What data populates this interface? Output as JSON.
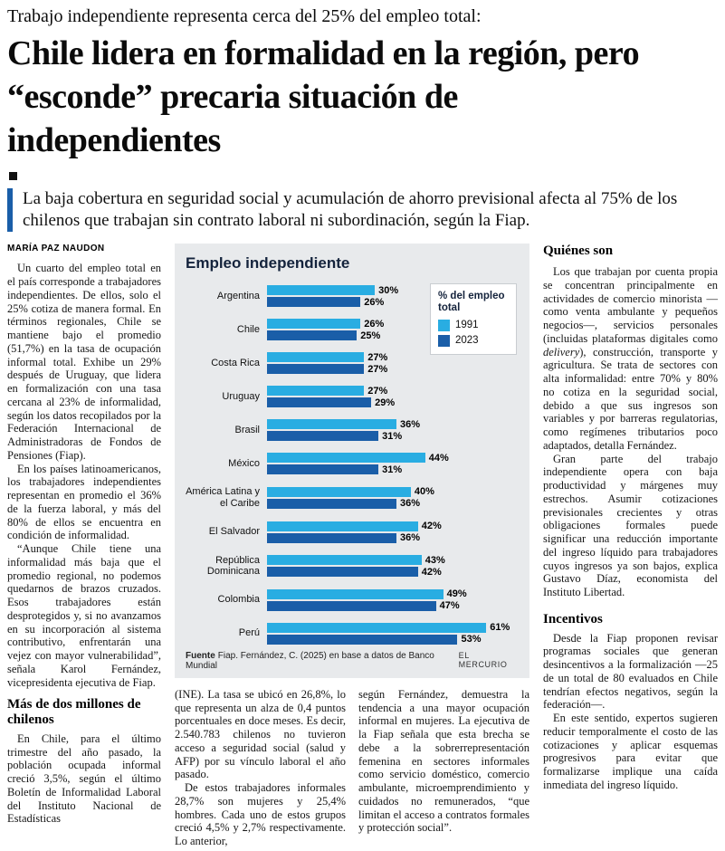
{
  "header": {
    "kicker": "Trabajo independiente representa cerca del 25% del empleo total:",
    "headline": "Chile lidera en formalidad en la región, pero “esconde” precaria situación de independientes",
    "deck": "La baja cobertura en seguridad social y acumulación de ahorro previsional afecta al 75% de los chilenos que trabajan sin contrato laboral ni subordinación, según la Fiap."
  },
  "article": {
    "byline": "MARÍA PAZ NAUDON",
    "left": {
      "paragraphs": [
        "Un cuarto del empleo total en el país corresponde a trabajadores independientes. De ellos, solo el 25% cotiza de manera formal. En términos regionales, Chile se mantiene bajo el promedio (51,7%) en la tasa de ocupación informal total. Exhibe un 29% después de Uruguay, que lidera en formalización con una tasa cercana al 23% de informalidad, según los datos recopilados por la Federación Internacional de Administradoras de Fondos de Pensiones (Fiap).",
        "En los países latinoamericanos, los trabajadores independientes representan en promedio el 36% de la fuerza laboral, y más del 80% de ellos se encuentra en condición de informalidad.",
        "“Aunque Chile tiene una informalidad más baja que el promedio regional, no podemos quedarnos de brazos cruzados. Esos trabajadores están desprotegidos y, si no avanzamos en su incorporación al sistema contributivo, enfrentarán una vejez con mayor vulnerabilidad”, señala Karol Fernández, vicepresidenta ejecutiva de Fiap."
      ],
      "subhead": "Más de dos millones de chilenos",
      "paragraphs_after": [
        "En Chile, para el último trimestre del año pasado, la población ocupada informal creció 3,5%, según el último Boletín de Informalidad Laboral del Instituto Nacional de Estadísticas"
      ]
    },
    "mid_a": {
      "paragraphs": [
        "(INE). La tasa se ubicó en 26,8%, lo que representa un alza de 0,4 puntos porcentuales en doce meses. Es decir, 2.540.783 chilenos no tuvieron acceso a seguridad social (salud y AFP) por su vínculo laboral el año pasado.",
        "De estos trabajadores informales 28,7% son mujeres y 25,4% hombres. Cada uno de estos grupos creció 4,5% y 2,7% respectivamente. Lo anterior,"
      ]
    },
    "mid_b": {
      "paragraphs": [
        "según Fernández, demuestra la tendencia a una mayor ocupación informal en mujeres. La ejecutiva de la Fiap señala que esta brecha se debe a la sobrerrepresentación femenina en sectores informales como servicio doméstico, comercio ambulante, microemprendimiento y cuidados no remunerados, “que limitan el acceso a contratos formales y protección social”."
      ]
    },
    "right": {
      "heading1": "Quiénes son",
      "p1_pre": "Los que trabajan por cuenta propia se concentran principalmente en actividades de comercio minorista —como venta ambulante y pequeños negocios—, servicios personales (incluidas plataformas digitales como ",
      "p1_italic": "delivery",
      "p1_post": "), construcción, transporte y agricultura. Se trata de sectores con alta informalidad: entre 70% y 80% no cotiza en la seguridad social, debido a que sus ingresos son variables y por barreras regulatorias, como regímenes tributarios poco adaptados, detalla Fernández.",
      "p2": "Gran parte del trabajo independiente opera con baja productividad y márgenes muy estrechos. Asumir cotizaciones previsionales crecientes y otras obligaciones formales puede significar una reducción importante del ingreso líquido para trabajadores cuyos ingresos ya son bajos, explica Gustavo Díaz, economista del Instituto Libertad.",
      "heading2": "Incentivos",
      "p3": "Desde la Fiap proponen revisar programas sociales que generan desincentivos a la formalización —25 de un total de 80 evaluados en Chile tendrían efectos negativos, según la federación—.",
      "p4": "En este sentido, expertos sugieren reducir temporalmente el costo de las cotizaciones y aplicar esquemas progresivos para evitar que formalizarse implique una caída inmediata del ingreso líquido."
    }
  },
  "chart_data": {
    "type": "bar",
    "orientation": "horizontal",
    "title": "Empleo independiente",
    "legend_title": "% del empleo total",
    "legend_position": "top-right",
    "categories": [
      "Argentina",
      "Chile",
      "Costa Rica",
      "Uruguay",
      "Brasil",
      "México",
      "América Latina y el Caribe",
      "El Salvador",
      "República Dominicana",
      "Colombia",
      "Perú"
    ],
    "series": [
      {
        "name": "1991",
        "color": "#29ade2",
        "values": [
          30,
          26,
          27,
          27,
          36,
          44,
          40,
          42,
          43,
          49,
          61
        ]
      },
      {
        "name": "2023",
        "color": "#1a5ea8",
        "values": [
          26,
          25,
          27,
          29,
          31,
          31,
          36,
          36,
          42,
          47,
          53
        ]
      }
    ],
    "value_suffix": "%",
    "xlim": [
      0,
      70
    ],
    "grid": false,
    "background": "#e8eaec",
    "source_label": "Fuente",
    "source": "Fiap. Fernández, C. (2025) en base a datos de Banco Mundial",
    "credit": "EL MERCURIO"
  }
}
